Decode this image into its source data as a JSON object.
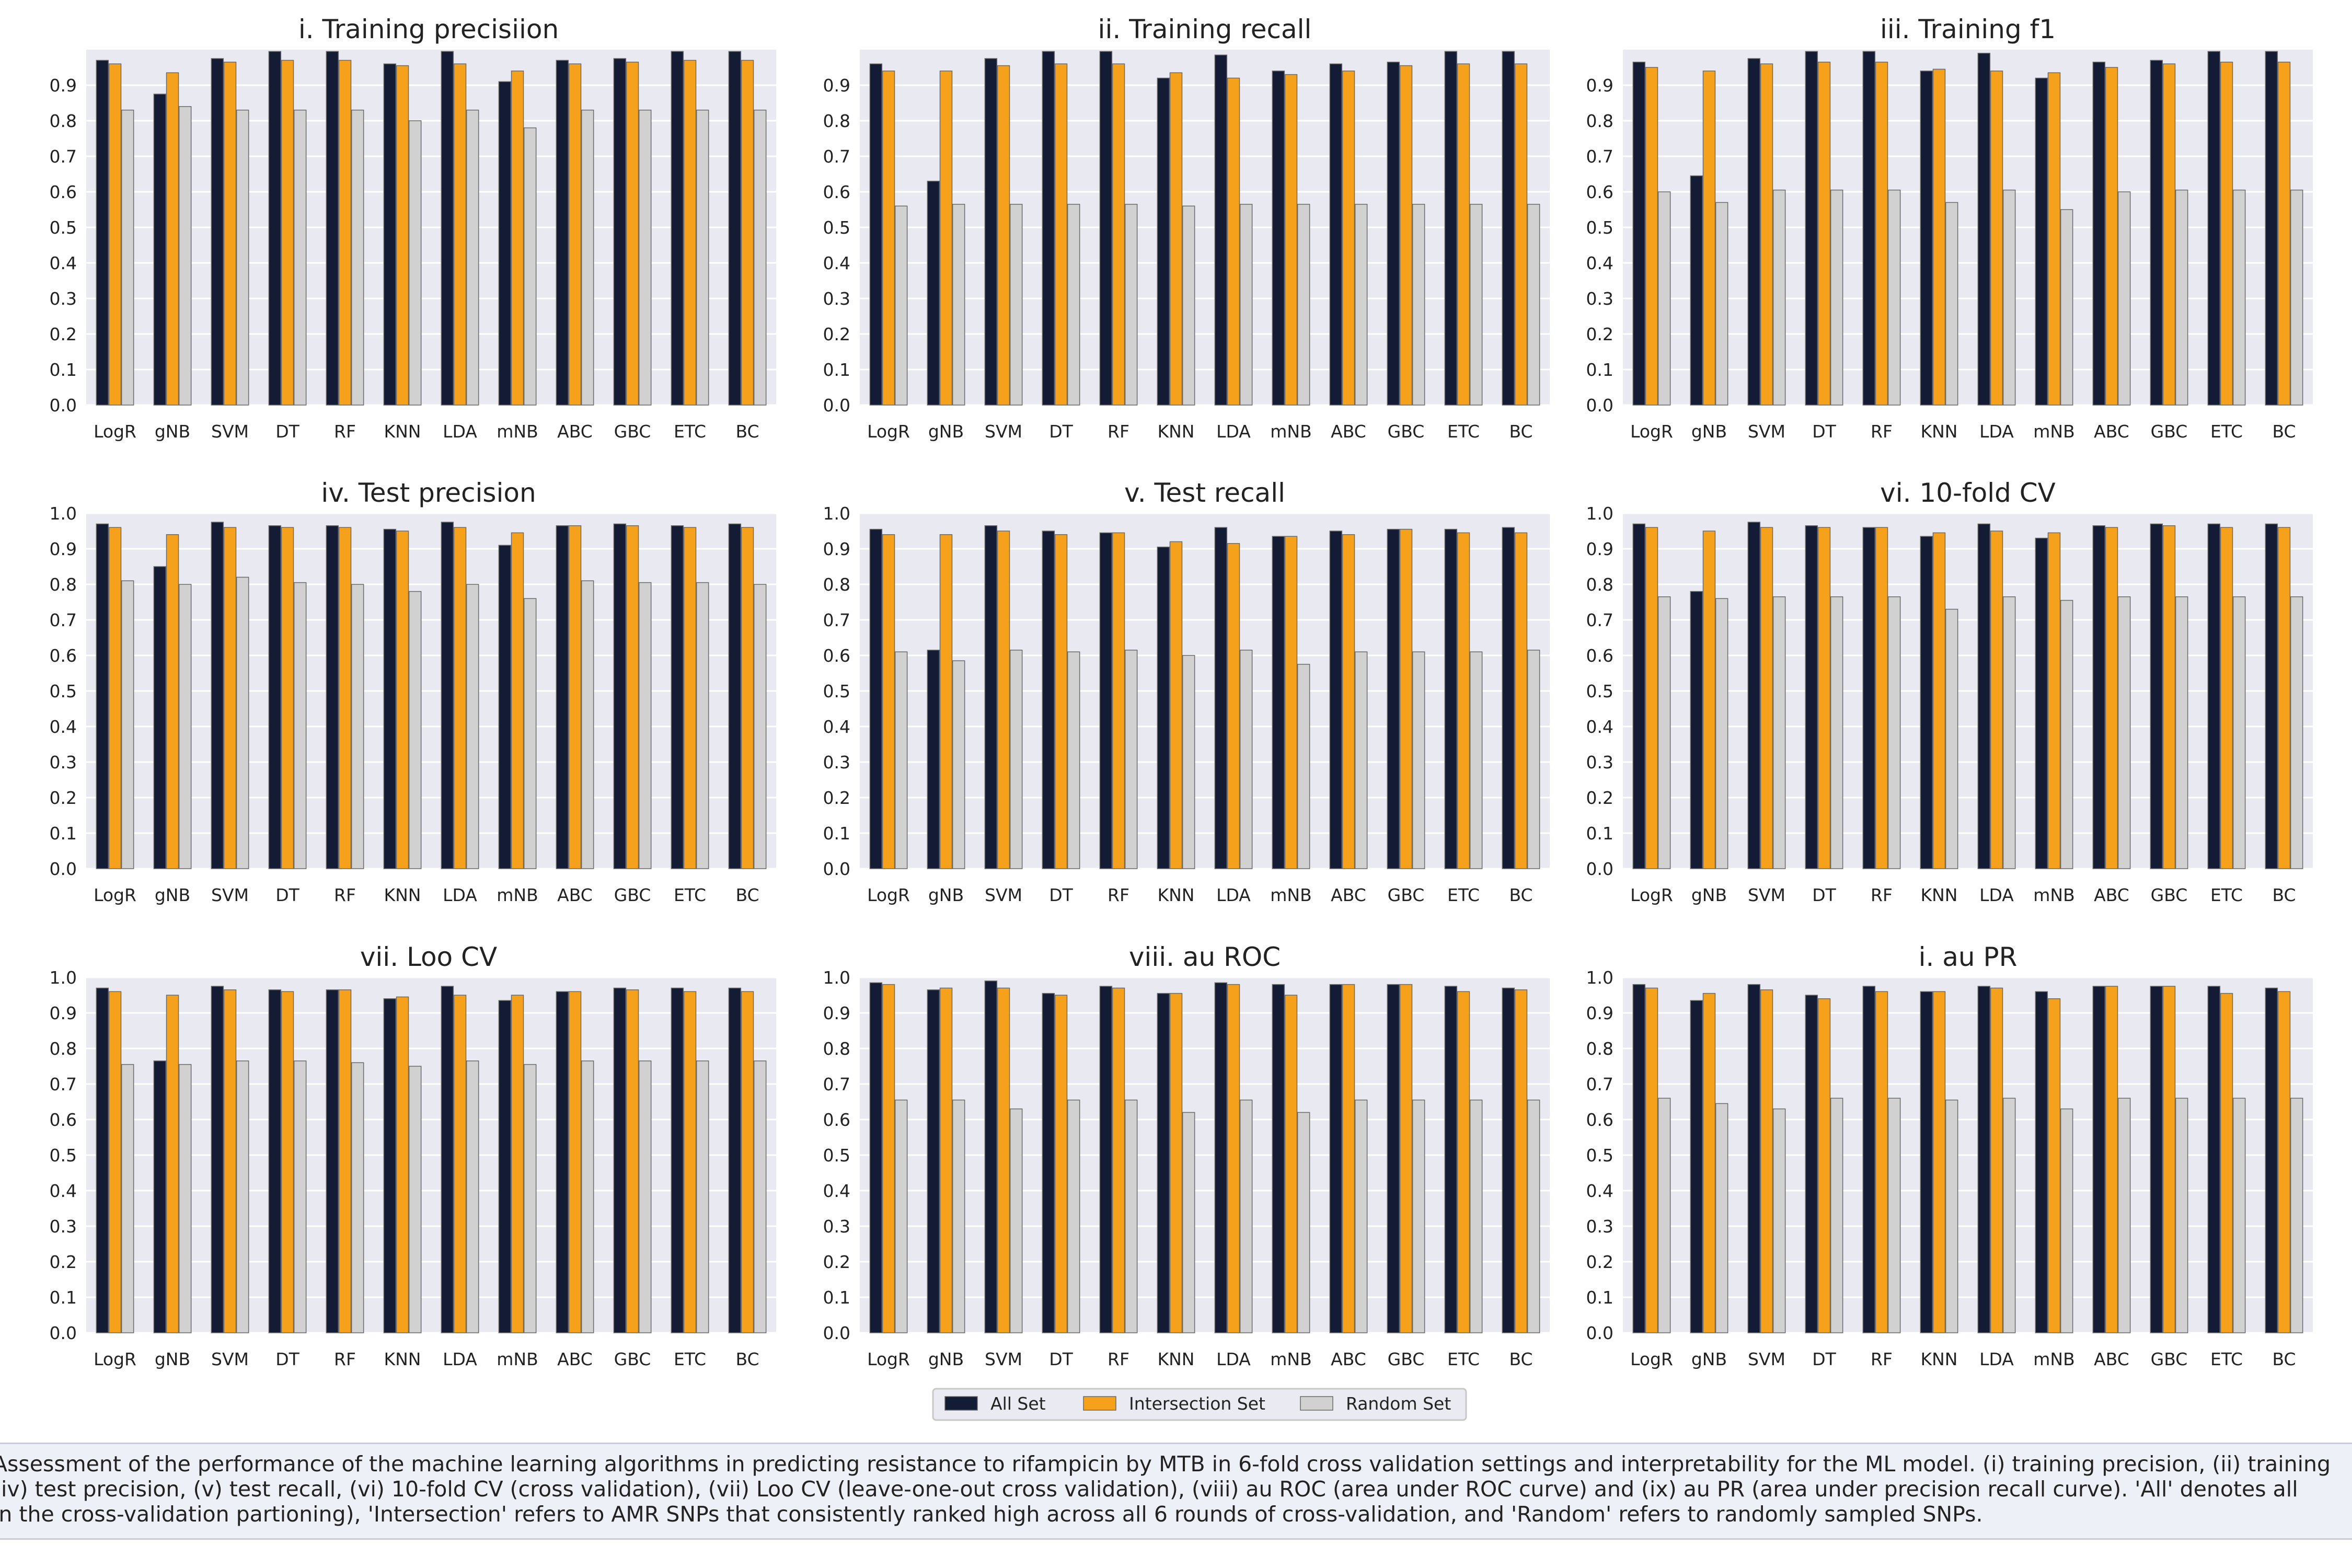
{
  "categories": [
    "LogR",
    "gNB",
    "SVM",
    "DT",
    "RF",
    "KNN",
    "LDA",
    "mNB",
    "ABC",
    "GBC",
    "ETC",
    "BC"
  ],
  "legend": {
    "items": [
      {
        "label": "All Set",
        "color": "#141c35"
      },
      {
        "label": "Intersection Set",
        "color": "#f5a11c"
      },
      {
        "label": "Random Set",
        "color": "#d1d1d1"
      }
    ]
  },
  "colors": {
    "plot_bg": "#e9e9f2",
    "grid": "#ffffff",
    "text": "#222222"
  },
  "caption": {
    "line1": "Assessment of the performance of the machine learning algorithms in predicting resistance to rifampicin by MTB in 6-fold cross validation settings and interpretability for the ML model. (i) training precision, (ii) training",
    "line2": "(iv) test precision, (v) test recall, (vi) 10-fold CV (cross validation), (vii) Loo CV (leave-one-out cross validation), (viii) au ROC (area under ROC curve) and (ix) au PR (area under precision recall curve). 'All' denotes all",
    "line3": "in the cross-validation partioning), 'Intersection' refers to AMR SNPs that consistently ranked high across all 6 rounds of cross-validation, and 'Random' refers to randomly sampled SNPs."
  },
  "chart_data": [
    {
      "type": "bar",
      "title": "i. Training precisiion",
      "ylim": [
        0,
        1.0
      ],
      "yticks": [
        0.0,
        0.1,
        0.2,
        0.3,
        0.4,
        0.5,
        0.6,
        0.7,
        0.8,
        0.9
      ],
      "categories": [
        "LogR",
        "gNB",
        "SVM",
        "DT",
        "RF",
        "KNN",
        "LDA",
        "mNB",
        "ABC",
        "GBC",
        "ETC",
        "BC"
      ],
      "series": [
        {
          "name": "All Set",
          "values": [
            0.97,
            0.875,
            0.975,
            0.995,
            0.995,
            0.96,
            0.995,
            0.91,
            0.97,
            0.975,
            0.995,
            0.995
          ]
        },
        {
          "name": "Intersection Set",
          "values": [
            0.96,
            0.935,
            0.965,
            0.97,
            0.97,
            0.955,
            0.96,
            0.94,
            0.96,
            0.965,
            0.97,
            0.97
          ]
        },
        {
          "name": "Random Set",
          "values": [
            0.83,
            0.84,
            0.83,
            0.83,
            0.83,
            0.8,
            0.83,
            0.78,
            0.83,
            0.83,
            0.83,
            0.83
          ]
        }
      ]
    },
    {
      "type": "bar",
      "title": "ii. Training recall",
      "ylim": [
        0,
        1.0
      ],
      "yticks": [
        0.0,
        0.1,
        0.2,
        0.3,
        0.4,
        0.5,
        0.6,
        0.7,
        0.8,
        0.9
      ],
      "categories": [
        "LogR",
        "gNB",
        "SVM",
        "DT",
        "RF",
        "KNN",
        "LDA",
        "mNB",
        "ABC",
        "GBC",
        "ETC",
        "BC"
      ],
      "series": [
        {
          "name": "All Set",
          "values": [
            0.96,
            0.63,
            0.975,
            0.995,
            0.995,
            0.92,
            0.985,
            0.94,
            0.96,
            0.965,
            0.995,
            0.995
          ]
        },
        {
          "name": "Intersection Set",
          "values": [
            0.94,
            0.94,
            0.955,
            0.96,
            0.96,
            0.935,
            0.92,
            0.93,
            0.94,
            0.955,
            0.96,
            0.96
          ]
        },
        {
          "name": "Random Set",
          "values": [
            0.56,
            0.565,
            0.565,
            0.565,
            0.565,
            0.56,
            0.565,
            0.565,
            0.565,
            0.565,
            0.565,
            0.565
          ]
        }
      ]
    },
    {
      "type": "bar",
      "title": "iii. Training f1",
      "ylim": [
        0,
        1.0
      ],
      "yticks": [
        0.0,
        0.1,
        0.2,
        0.3,
        0.4,
        0.5,
        0.6,
        0.7,
        0.8,
        0.9
      ],
      "categories": [
        "LogR",
        "gNB",
        "SVM",
        "DT",
        "RF",
        "KNN",
        "LDA",
        "mNB",
        "ABC",
        "GBC",
        "ETC",
        "BC"
      ],
      "series": [
        {
          "name": "All Set",
          "values": [
            0.965,
            0.645,
            0.975,
            0.995,
            0.995,
            0.94,
            0.99,
            0.92,
            0.965,
            0.97,
            0.995,
            0.995
          ]
        },
        {
          "name": "Intersection Set",
          "values": [
            0.95,
            0.94,
            0.96,
            0.965,
            0.965,
            0.945,
            0.94,
            0.935,
            0.95,
            0.96,
            0.965,
            0.965
          ]
        },
        {
          "name": "Random Set",
          "values": [
            0.6,
            0.57,
            0.605,
            0.605,
            0.605,
            0.57,
            0.605,
            0.55,
            0.6,
            0.605,
            0.605,
            0.605
          ]
        }
      ]
    },
    {
      "type": "bar",
      "title": "iv. Test precision",
      "ylim": [
        0,
        1.0
      ],
      "yticks": [
        0.0,
        0.1,
        0.2,
        0.3,
        0.4,
        0.5,
        0.6,
        0.7,
        0.8,
        0.9,
        1.0
      ],
      "categories": [
        "LogR",
        "gNB",
        "SVM",
        "DT",
        "RF",
        "KNN",
        "LDA",
        "mNB",
        "ABC",
        "GBC",
        "ETC",
        "BC"
      ],
      "series": [
        {
          "name": "All Set",
          "values": [
            0.97,
            0.85,
            0.975,
            0.965,
            0.965,
            0.955,
            0.975,
            0.91,
            0.965,
            0.97,
            0.965,
            0.97
          ]
        },
        {
          "name": "Intersection Set",
          "values": [
            0.96,
            0.94,
            0.96,
            0.96,
            0.96,
            0.95,
            0.96,
            0.945,
            0.965,
            0.965,
            0.96,
            0.96
          ]
        },
        {
          "name": "Random Set",
          "values": [
            0.81,
            0.8,
            0.82,
            0.805,
            0.8,
            0.78,
            0.8,
            0.76,
            0.81,
            0.805,
            0.805,
            0.8
          ]
        }
      ]
    },
    {
      "type": "bar",
      "title": "v. Test recall",
      "ylim": [
        0,
        1.0
      ],
      "yticks": [
        0.0,
        0.1,
        0.2,
        0.3,
        0.4,
        0.5,
        0.6,
        0.7,
        0.8,
        0.9,
        1.0
      ],
      "categories": [
        "LogR",
        "gNB",
        "SVM",
        "DT",
        "RF",
        "KNN",
        "LDA",
        "mNB",
        "ABC",
        "GBC",
        "ETC",
        "BC"
      ],
      "series": [
        {
          "name": "All Set",
          "values": [
            0.955,
            0.615,
            0.965,
            0.95,
            0.945,
            0.905,
            0.96,
            0.935,
            0.95,
            0.955,
            0.955,
            0.96
          ]
        },
        {
          "name": "Intersection Set",
          "values": [
            0.94,
            0.94,
            0.95,
            0.94,
            0.945,
            0.92,
            0.915,
            0.935,
            0.94,
            0.955,
            0.945,
            0.945
          ]
        },
        {
          "name": "Random Set",
          "values": [
            0.61,
            0.585,
            0.615,
            0.61,
            0.615,
            0.6,
            0.615,
            0.575,
            0.61,
            0.61,
            0.61,
            0.615
          ]
        }
      ]
    },
    {
      "type": "bar",
      "title": "vi. 10-fold CV",
      "ylim": [
        0,
        1.0
      ],
      "yticks": [
        0.0,
        0.1,
        0.2,
        0.3,
        0.4,
        0.5,
        0.6,
        0.7,
        0.8,
        0.9,
        1.0
      ],
      "categories": [
        "LogR",
        "gNB",
        "SVM",
        "DT",
        "RF",
        "KNN",
        "LDA",
        "mNB",
        "ABC",
        "GBC",
        "ETC",
        "BC"
      ],
      "series": [
        {
          "name": "All Set",
          "values": [
            0.97,
            0.78,
            0.975,
            0.965,
            0.96,
            0.935,
            0.97,
            0.93,
            0.965,
            0.97,
            0.97,
            0.97
          ]
        },
        {
          "name": "Intersection Set",
          "values": [
            0.96,
            0.95,
            0.96,
            0.96,
            0.96,
            0.945,
            0.95,
            0.945,
            0.96,
            0.965,
            0.96,
            0.96
          ]
        },
        {
          "name": "Random Set",
          "values": [
            0.765,
            0.76,
            0.765,
            0.765,
            0.765,
            0.73,
            0.765,
            0.755,
            0.765,
            0.765,
            0.765,
            0.765
          ]
        }
      ]
    },
    {
      "type": "bar",
      "title": "vii. Loo CV",
      "ylim": [
        0,
        1.0
      ],
      "yticks": [
        0.0,
        0.1,
        0.2,
        0.3,
        0.4,
        0.5,
        0.6,
        0.7,
        0.8,
        0.9,
        1.0
      ],
      "categories": [
        "LogR",
        "gNB",
        "SVM",
        "DT",
        "RF",
        "KNN",
        "LDA",
        "mNB",
        "ABC",
        "GBC",
        "ETC",
        "BC"
      ],
      "series": [
        {
          "name": "All Set",
          "values": [
            0.97,
            0.765,
            0.975,
            0.965,
            0.965,
            0.94,
            0.975,
            0.935,
            0.96,
            0.97,
            0.97,
            0.97
          ]
        },
        {
          "name": "Intersection Set",
          "values": [
            0.96,
            0.95,
            0.965,
            0.96,
            0.965,
            0.945,
            0.95,
            0.95,
            0.96,
            0.965,
            0.96,
            0.96
          ]
        },
        {
          "name": "Random Set",
          "values": [
            0.755,
            0.755,
            0.765,
            0.765,
            0.76,
            0.75,
            0.765,
            0.755,
            0.765,
            0.765,
            0.765,
            0.765
          ]
        }
      ]
    },
    {
      "type": "bar",
      "title": "viii. au ROC",
      "ylim": [
        0,
        1.0
      ],
      "yticks": [
        0.0,
        0.1,
        0.2,
        0.3,
        0.4,
        0.5,
        0.6,
        0.7,
        0.8,
        0.9,
        1.0
      ],
      "categories": [
        "LogR",
        "gNB",
        "SVM",
        "DT",
        "RF",
        "KNN",
        "LDA",
        "mNB",
        "ABC",
        "GBC",
        "ETC",
        "BC"
      ],
      "series": [
        {
          "name": "All Set",
          "values": [
            0.985,
            0.965,
            0.99,
            0.955,
            0.975,
            0.955,
            0.985,
            0.98,
            0.98,
            0.98,
            0.975,
            0.97
          ]
        },
        {
          "name": "Intersection Set",
          "values": [
            0.98,
            0.97,
            0.97,
            0.95,
            0.97,
            0.955,
            0.98,
            0.95,
            0.98,
            0.98,
            0.96,
            0.965
          ]
        },
        {
          "name": "Random Set",
          "values": [
            0.655,
            0.655,
            0.63,
            0.655,
            0.655,
            0.62,
            0.655,
            0.62,
            0.655,
            0.655,
            0.655,
            0.655
          ]
        }
      ]
    },
    {
      "type": "bar",
      "title": "i. au PR",
      "ylim": [
        0,
        1.0
      ],
      "yticks": [
        0.0,
        0.1,
        0.2,
        0.3,
        0.4,
        0.5,
        0.6,
        0.7,
        0.8,
        0.9,
        1.0
      ],
      "categories": [
        "LogR",
        "gNB",
        "SVM",
        "DT",
        "RF",
        "KNN",
        "LDA",
        "mNB",
        "ABC",
        "GBC",
        "ETC",
        "BC"
      ],
      "series": [
        {
          "name": "All Set",
          "values": [
            0.98,
            0.935,
            0.98,
            0.95,
            0.975,
            0.96,
            0.975,
            0.96,
            0.975,
            0.975,
            0.975,
            0.97
          ]
        },
        {
          "name": "Intersection Set",
          "values": [
            0.97,
            0.955,
            0.965,
            0.94,
            0.96,
            0.96,
            0.97,
            0.94,
            0.975,
            0.975,
            0.955,
            0.96
          ]
        },
        {
          "name": "Random Set",
          "values": [
            0.66,
            0.645,
            0.63,
            0.66,
            0.66,
            0.655,
            0.66,
            0.63,
            0.66,
            0.66,
            0.66,
            0.66
          ]
        }
      ]
    }
  ]
}
